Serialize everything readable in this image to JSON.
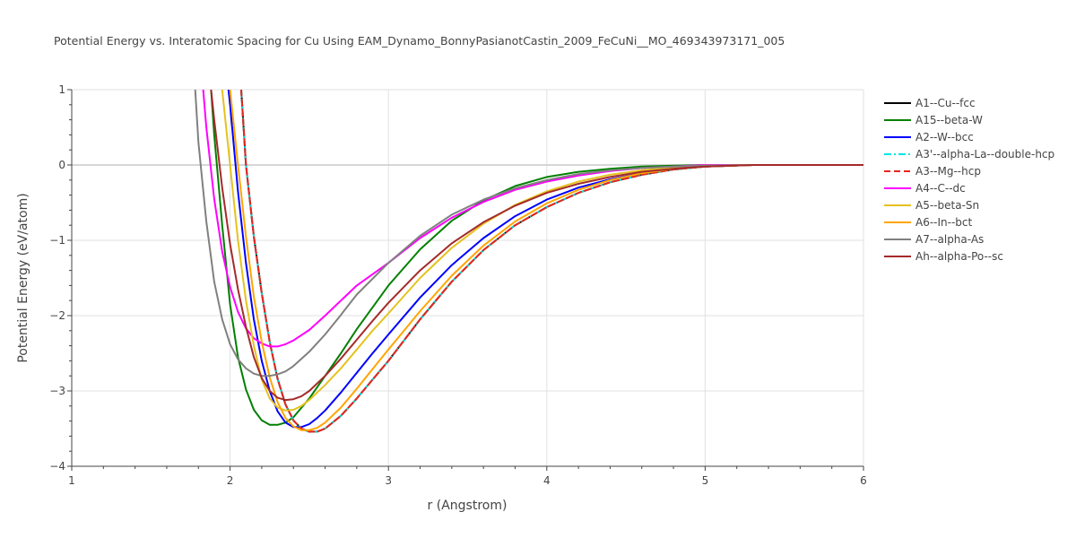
{
  "chart_data": {
    "type": "line",
    "title": "Potential Energy vs. Interatomic Spacing for Cu Using EAM_Dynamo_BonnyPasianotCastin_2009_FeCuNi__MO_469343973171_005",
    "xlabel": "r (Angstrom)",
    "ylabel": "Potential Energy (eV/atom)",
    "xlim": [
      1,
      6
    ],
    "ylim": [
      -4,
      1
    ],
    "xticks": [
      1,
      2,
      3,
      4,
      5,
      6
    ],
    "yticks": [
      1,
      0,
      -1,
      -2,
      -3,
      -4
    ],
    "xtick_labels": [
      "1",
      "2",
      "3",
      "4",
      "5",
      "6"
    ],
    "ytick_labels": [
      "1",
      "0",
      "−1",
      "−2",
      "−3",
      "−4"
    ],
    "grid": true,
    "legend_position": "right",
    "series": [
      {
        "name": "A1--Cu--fcc",
        "color": "#000000",
        "dash": "solid",
        "x": [
          2.07,
          2.1,
          2.15,
          2.2,
          2.25,
          2.3,
          2.35,
          2.4,
          2.45,
          2.5,
          2.55,
          2.6,
          2.7,
          2.8,
          2.9,
          3.0,
          3.2,
          3.4,
          3.6,
          3.8,
          4.0,
          4.2,
          4.4,
          4.6,
          4.8,
          5.0,
          5.3,
          6.0
        ],
        "y": [
          1.0,
          0.0,
          -0.95,
          -1.7,
          -2.35,
          -2.84,
          -3.18,
          -3.39,
          -3.5,
          -3.54,
          -3.54,
          -3.5,
          -3.33,
          -3.1,
          -2.85,
          -2.6,
          -2.05,
          -1.55,
          -1.13,
          -0.8,
          -0.56,
          -0.37,
          -0.23,
          -0.13,
          -0.06,
          -0.02,
          0.0,
          0.0
        ]
      },
      {
        "name": "A15--beta-W",
        "color": "#008000",
        "dash": "solid",
        "x": [
          1.88,
          1.9,
          1.95,
          2.0,
          2.05,
          2.1,
          2.15,
          2.2,
          2.25,
          2.3,
          2.35,
          2.4,
          2.5,
          2.6,
          2.7,
          2.8,
          3.0,
          3.2,
          3.4,
          3.6,
          3.8,
          4.0,
          4.2,
          4.4,
          4.6,
          4.8,
          5.0,
          5.3,
          6.0
        ],
        "y": [
          1.0,
          0.4,
          -0.8,
          -1.85,
          -2.55,
          -2.98,
          -3.25,
          -3.39,
          -3.45,
          -3.45,
          -3.42,
          -3.35,
          -3.1,
          -2.8,
          -2.5,
          -2.18,
          -1.6,
          -1.12,
          -0.74,
          -0.47,
          -0.28,
          -0.16,
          -0.09,
          -0.05,
          -0.02,
          -0.01,
          0.0,
          0.0,
          0.0
        ]
      },
      {
        "name": "A2--W--bcc",
        "color": "#0000ff",
        "dash": "solid",
        "x": [
          1.99,
          2.0,
          2.05,
          2.1,
          2.15,
          2.2,
          2.25,
          2.3,
          2.35,
          2.4,
          2.45,
          2.5,
          2.55,
          2.6,
          2.7,
          2.8,
          2.9,
          3.0,
          3.2,
          3.4,
          3.6,
          3.8,
          4.0,
          4.2,
          4.4,
          4.6,
          4.8,
          5.0,
          5.3,
          6.0
        ],
        "y": [
          1.0,
          0.8,
          -0.35,
          -1.3,
          -2.05,
          -2.6,
          -3.0,
          -3.27,
          -3.42,
          -3.48,
          -3.48,
          -3.44,
          -3.36,
          -3.26,
          -3.02,
          -2.76,
          -2.5,
          -2.25,
          -1.76,
          -1.33,
          -0.97,
          -0.68,
          -0.46,
          -0.3,
          -0.19,
          -0.11,
          -0.05,
          -0.02,
          0.0,
          0.0
        ]
      },
      {
        "name": "A3'--alpha-La--double-hcp",
        "color": "#00e5e5",
        "dash": "dashdot",
        "x": [
          2.07,
          2.1,
          2.15,
          2.2,
          2.25,
          2.3,
          2.35,
          2.4,
          2.45,
          2.5,
          2.55,
          2.6,
          2.7,
          2.8,
          2.9,
          3.0,
          3.2,
          3.4,
          3.6,
          3.8,
          4.0,
          4.2,
          4.4,
          4.6,
          4.8,
          5.0,
          5.3,
          6.0
        ],
        "y": [
          1.0,
          0.0,
          -0.95,
          -1.7,
          -2.35,
          -2.84,
          -3.18,
          -3.39,
          -3.5,
          -3.54,
          -3.54,
          -3.5,
          -3.33,
          -3.1,
          -2.85,
          -2.6,
          -2.05,
          -1.55,
          -1.13,
          -0.8,
          -0.56,
          -0.37,
          -0.23,
          -0.13,
          -0.06,
          -0.02,
          0.0,
          0.0
        ]
      },
      {
        "name": "A3--Mg--hcp",
        "color": "#e8251e",
        "dash": "dash",
        "x": [
          2.07,
          2.1,
          2.15,
          2.2,
          2.25,
          2.3,
          2.35,
          2.4,
          2.45,
          2.5,
          2.55,
          2.6,
          2.7,
          2.8,
          2.9,
          3.0,
          3.2,
          3.4,
          3.6,
          3.8,
          4.0,
          4.2,
          4.4,
          4.6,
          4.8,
          5.0,
          5.3,
          6.0
        ],
        "y": [
          1.0,
          0.0,
          -0.95,
          -1.7,
          -2.35,
          -2.84,
          -3.18,
          -3.39,
          -3.5,
          -3.54,
          -3.54,
          -3.5,
          -3.33,
          -3.1,
          -2.85,
          -2.6,
          -2.05,
          -1.55,
          -1.13,
          -0.8,
          -0.56,
          -0.37,
          -0.23,
          -0.13,
          -0.06,
          -0.02,
          0.0,
          0.0
        ]
      },
      {
        "name": "A4--C--dc",
        "color": "#ff00ff",
        "dash": "solid",
        "x": [
          1.83,
          1.85,
          1.9,
          1.95,
          2.0,
          2.05,
          2.1,
          2.15,
          2.2,
          2.25,
          2.3,
          2.35,
          2.4,
          2.5,
          2.6,
          2.7,
          2.8,
          3.0,
          3.2,
          3.4,
          3.6,
          3.8,
          4.0,
          4.2,
          4.4,
          4.6,
          4.8,
          5.0,
          5.3,
          6.0
        ],
        "y": [
          1.0,
          0.5,
          -0.45,
          -1.15,
          -1.62,
          -1.95,
          -2.17,
          -2.3,
          -2.37,
          -2.41,
          -2.41,
          -2.38,
          -2.33,
          -2.19,
          -2.0,
          -1.8,
          -1.6,
          -1.3,
          -0.97,
          -0.7,
          -0.49,
          -0.33,
          -0.22,
          -0.14,
          -0.08,
          -0.04,
          -0.02,
          0.0,
          0.0,
          0.0
        ]
      },
      {
        "name": "A5--beta-Sn",
        "color": "#e5c21f",
        "dash": "solid",
        "x": [
          1.95,
          1.97,
          2.0,
          2.05,
          2.1,
          2.15,
          2.2,
          2.25,
          2.3,
          2.35,
          2.4,
          2.45,
          2.5,
          2.6,
          2.7,
          2.8,
          2.9,
          3.0,
          3.2,
          3.4,
          3.6,
          3.8,
          4.0,
          4.2,
          4.4,
          4.6,
          4.8,
          5.0,
          5.3,
          6.0
        ],
        "y": [
          1.0,
          0.6,
          0.0,
          -1.0,
          -1.8,
          -2.4,
          -2.85,
          -3.1,
          -3.22,
          -3.26,
          -3.25,
          -3.2,
          -3.12,
          -2.92,
          -2.7,
          -2.45,
          -2.2,
          -1.97,
          -1.5,
          -1.1,
          -0.78,
          -0.53,
          -0.35,
          -0.22,
          -0.13,
          -0.07,
          -0.03,
          -0.01,
          0.0,
          0.0
        ]
      },
      {
        "name": "A6--In--bct",
        "color": "#ffa500",
        "dash": "solid",
        "x": [
          2.0,
          2.02,
          2.05,
          2.1,
          2.15,
          2.2,
          2.25,
          2.3,
          2.35,
          2.4,
          2.45,
          2.5,
          2.55,
          2.6,
          2.7,
          2.8,
          2.9,
          3.0,
          3.2,
          3.4,
          3.6,
          3.8,
          4.0,
          4.2,
          4.4,
          4.6,
          4.8,
          5.0,
          5.3,
          6.0
        ],
        "y": [
          1.0,
          0.6,
          0.0,
          -0.95,
          -1.75,
          -2.35,
          -2.82,
          -3.15,
          -3.36,
          -3.47,
          -3.52,
          -3.52,
          -3.49,
          -3.42,
          -3.22,
          -2.97,
          -2.71,
          -2.45,
          -1.94,
          -1.47,
          -1.07,
          -0.75,
          -0.51,
          -0.33,
          -0.2,
          -0.11,
          -0.05,
          -0.02,
          0.0,
          0.0
        ]
      },
      {
        "name": "A7--alpha-As",
        "color": "#808080",
        "dash": "solid",
        "x": [
          1.78,
          1.8,
          1.85,
          1.9,
          1.95,
          2.0,
          2.05,
          2.1,
          2.15,
          2.2,
          2.25,
          2.3,
          2.35,
          2.4,
          2.5,
          2.6,
          2.7,
          2.8,
          3.0,
          3.2,
          3.4,
          3.6,
          3.8,
          4.0,
          4.2,
          4.4,
          4.6,
          4.8,
          5.0,
          5.3,
          6.0
        ],
        "y": [
          1.0,
          0.3,
          -0.75,
          -1.55,
          -2.05,
          -2.38,
          -2.58,
          -2.7,
          -2.77,
          -2.8,
          -2.8,
          -2.78,
          -2.74,
          -2.67,
          -2.48,
          -2.25,
          -1.99,
          -1.72,
          -1.3,
          -0.94,
          -0.66,
          -0.46,
          -0.31,
          -0.2,
          -0.12,
          -0.07,
          -0.04,
          -0.02,
          -0.01,
          0.0,
          0.0
        ]
      },
      {
        "name": "Ah--alpha-Po--sc",
        "color": "#a52a2a",
        "dash": "solid",
        "x": [
          1.88,
          1.9,
          1.95,
          2.0,
          2.05,
          2.1,
          2.15,
          2.2,
          2.25,
          2.3,
          2.35,
          2.4,
          2.45,
          2.5,
          2.6,
          2.7,
          2.8,
          2.9,
          3.0,
          3.2,
          3.4,
          3.6,
          3.8,
          4.0,
          4.2,
          4.4,
          4.6,
          4.8,
          5.0,
          5.3,
          6.0
        ],
        "y": [
          1.0,
          0.6,
          -0.3,
          -1.05,
          -1.65,
          -2.15,
          -2.55,
          -2.83,
          -3.0,
          -3.09,
          -3.12,
          -3.11,
          -3.07,
          -3.0,
          -2.8,
          -2.57,
          -2.32,
          -2.07,
          -1.83,
          -1.4,
          -1.04,
          -0.76,
          -0.54,
          -0.37,
          -0.25,
          -0.16,
          -0.09,
          -0.05,
          -0.02,
          0.0,
          0.0
        ]
      }
    ]
  }
}
